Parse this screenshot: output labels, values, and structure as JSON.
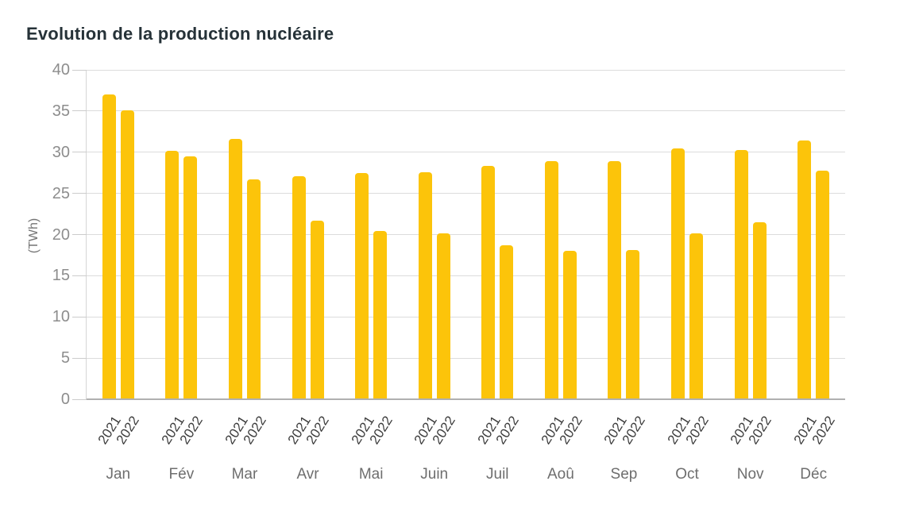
{
  "chart": {
    "title": "Evolution de la production nucléaire"
  },
  "chart_data": {
    "type": "bar",
    "title": "Evolution de la production nucléaire",
    "xlabel": "",
    "ylabel": "(TWh)",
    "categories": [
      "Jan",
      "Fév",
      "Mar",
      "Avr",
      "Mai",
      "Juin",
      "Juil",
      "Aoû",
      "Sep",
      "Oct",
      "Nov",
      "Déc"
    ],
    "series": [
      {
        "name": "2021",
        "values": [
          37.0,
          30.2,
          31.6,
          27.1,
          27.5,
          27.6,
          28.3,
          28.9,
          28.9,
          30.5,
          30.3,
          31.4
        ]
      },
      {
        "name": "2022",
        "values": [
          35.1,
          29.5,
          26.7,
          21.7,
          20.4,
          20.1,
          18.7,
          18.0,
          18.1,
          20.1,
          21.5,
          27.8
        ]
      }
    ],
    "ylim": [
      0,
      40
    ],
    "yticks": [
      0,
      5,
      10,
      15,
      20,
      25,
      30,
      35,
      40
    ],
    "grid": true,
    "legend": "none",
    "bar_label_rotation_deg": -58,
    "colors": {
      "bar": "#FCC40A",
      "title": "#263238",
      "y_tick_label": "#8d8d8d",
      "month_label": "#6e6e6e",
      "year_label": "#3c3c3c",
      "gridline": "#dcdcdc",
      "axis_line": "#b0b0b0"
    }
  }
}
